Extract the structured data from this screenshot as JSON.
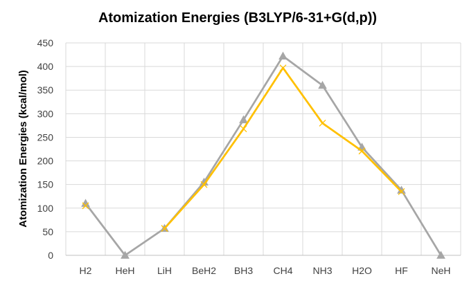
{
  "chart_data": {
    "type": "line",
    "title": "Atomization Energies  (B3LYP/6-31+G(d,p))",
    "xlabel": "",
    "ylabel": "Atomization Energies (kcal/mol)",
    "categories": [
      "H2",
      "HeH",
      "LiH",
      "BeH2",
      "BH3",
      "CH4",
      "NH3",
      "H2O",
      "HF",
      "NeH"
    ],
    "ylim": [
      0,
      450
    ],
    "yticks": [
      0,
      50,
      100,
      150,
      200,
      250,
      300,
      350,
      400,
      450
    ],
    "grid": true,
    "legend": "none",
    "series": [
      {
        "color": "#a6a6a6",
        "marker": "triangle",
        "values": [
          110,
          0,
          57,
          155,
          287,
          422,
          360,
          229,
          138,
          0
        ]
      },
      {
        "color": "#ffc000",
        "marker": "x",
        "values": [
          105,
          null,
          57,
          150,
          268,
          397,
          280,
          221,
          135,
          null
        ]
      }
    ]
  }
}
